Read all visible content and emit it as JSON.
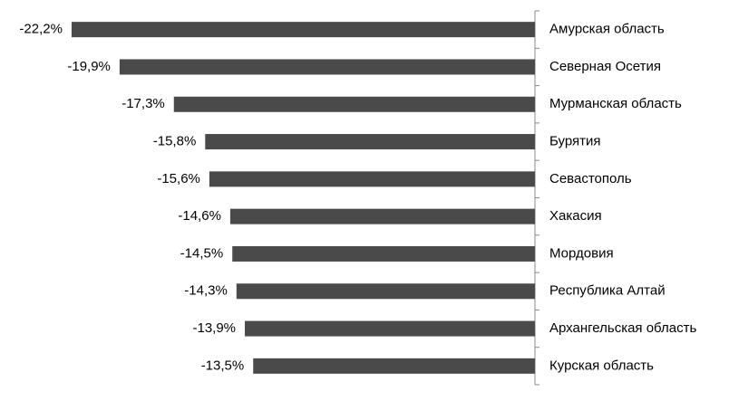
{
  "chart_data": {
    "type": "hbar",
    "categories": [
      "Амурская область",
      "Северная Осетия",
      "Мурманская область",
      "Бурятия",
      "Севастополь",
      "Хакасия",
      "Мордовия",
      "Республика Алтай",
      "Архангельская область",
      "Курская область"
    ],
    "values": [
      -22.2,
      -19.9,
      -17.3,
      -15.8,
      -15.6,
      -14.6,
      -14.5,
      -14.3,
      -13.9,
      -13.5
    ],
    "value_labels": [
      "-22,2%",
      "-19,9%",
      "-17,3%",
      "-15,8%",
      "-15,6%",
      "-14,6%",
      "-14,5%",
      "-14,3%",
      "-13,9%",
      "-13,5%"
    ],
    "color": "#4a4a4a",
    "xlim": [
      -25,
      0
    ]
  }
}
